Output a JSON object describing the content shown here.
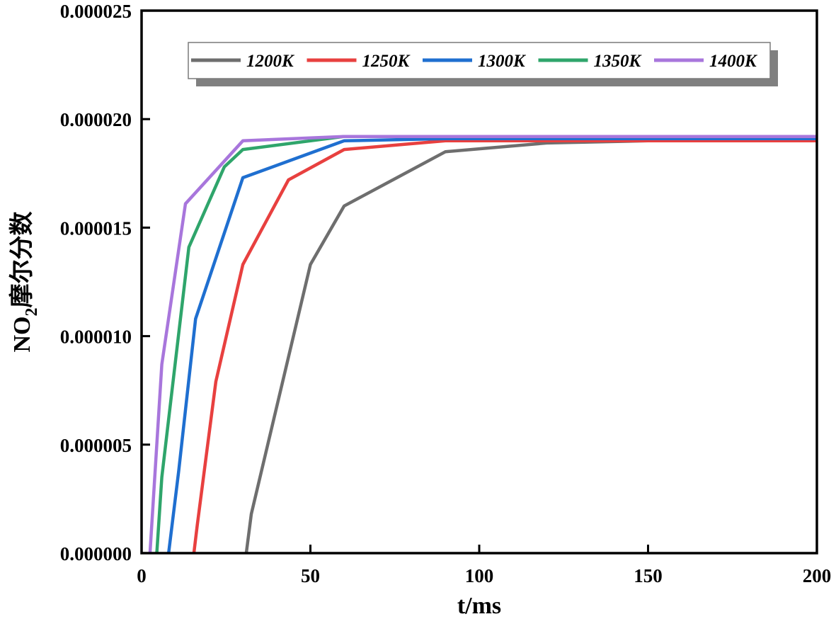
{
  "chart_data": {
    "type": "line",
    "title": "",
    "xlabel": "t/ms",
    "ylabel_main": "NO",
    "ylabel_sub": "2",
    "ylabel_suffix": "摩尔分数",
    "xlim": [
      0,
      200
    ],
    "ylim": [
      0,
      2.5e-05
    ],
    "x_ticks": [
      0,
      50,
      100,
      150,
      200
    ],
    "x_tick_labels": [
      "0",
      "50",
      "100",
      "150",
      "200"
    ],
    "y_ticks": [
      0,
      5e-06,
      1e-05,
      1.5e-05,
      2e-05,
      2.5e-05
    ],
    "y_tick_labels": [
      "0.000000",
      "0.000005",
      "0.000010",
      "0.000015",
      "0.000020",
      "0.000025"
    ],
    "legend_position": "top",
    "series": [
      {
        "name": "1200K",
        "color": "#6e6e6e",
        "x": [
          31,
          32.5,
          50,
          60,
          90,
          120,
          150,
          200
        ],
        "y": [
          0,
          1.8e-06,
          1.33e-05,
          1.6e-05,
          1.85e-05,
          1.89e-05,
          1.9e-05,
          1.9e-05
        ]
      },
      {
        "name": "1250K",
        "color": "#e8403f",
        "x": [
          15.5,
          16.5,
          22,
          30,
          43.5,
          60,
          90,
          120,
          150,
          200
        ],
        "y": [
          0,
          1.3e-06,
          7.9e-06,
          1.33e-05,
          1.72e-05,
          1.86e-05,
          1.9e-05,
          1.9e-05,
          1.9e-05,
          1.9e-05
        ]
      },
      {
        "name": "1300K",
        "color": "#1f6fd0",
        "x": [
          8,
          11,
          16,
          30,
          60,
          90,
          120,
          150,
          200
        ],
        "y": [
          0,
          3.8e-06,
          1.08e-05,
          1.73e-05,
          1.9e-05,
          1.91e-05,
          1.91e-05,
          1.91e-05,
          1.91e-05
        ]
      },
      {
        "name": "1350K",
        "color": "#2fa56b",
        "x": [
          4.5,
          6,
          14,
          24.5,
          30,
          60,
          90,
          120,
          150,
          200
        ],
        "y": [
          0,
          3.5e-06,
          1.41e-05,
          1.78e-05,
          1.86e-05,
          1.92e-05,
          1.92e-05,
          1.92e-05,
          1.92e-05,
          1.92e-05
        ]
      },
      {
        "name": "1400K",
        "color": "#a876dc",
        "x": [
          2.5,
          6,
          13,
          30,
          60,
          90,
          120,
          150,
          200
        ],
        "y": [
          0,
          8.7e-06,
          1.61e-05,
          1.9e-05,
          1.92e-05,
          1.92e-05,
          1.92e-05,
          1.92e-05,
          1.92e-05
        ]
      }
    ]
  }
}
